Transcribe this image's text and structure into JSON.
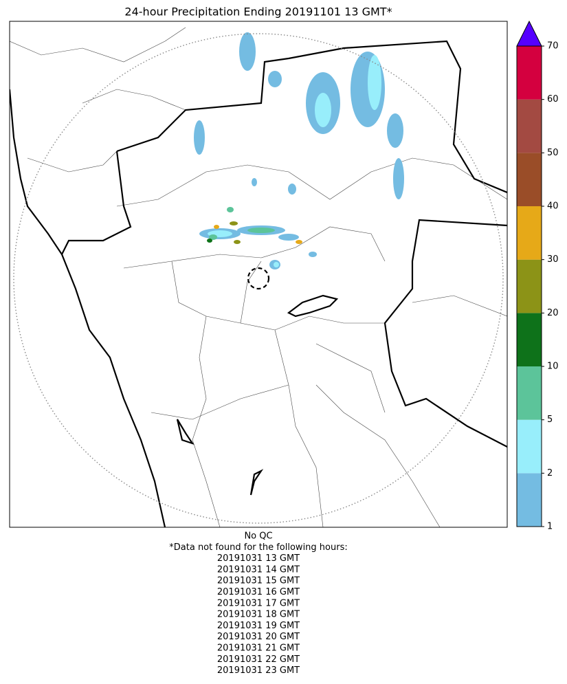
{
  "title": "24-hour Precipitation Ending 20191101 13 GMT*",
  "colorbar": {
    "boundaries": [
      1,
      2,
      5,
      10,
      20,
      30,
      40,
      50,
      60,
      70
    ],
    "colors": [
      "#74bce2",
      "#98eefb",
      "#5cc49a",
      "#0e721a",
      "#8c9317",
      "#e6a918",
      "#9a4d28",
      "#a34a42",
      "#d4003f"
    ],
    "extend_color": "#5500ff"
  },
  "notes": {
    "qc": "No QC",
    "missing_header": "*Data not found for the following hours:",
    "missing_hours": [
      "20191031 13 GMT",
      "20191031 14 GMT",
      "20191031 15 GMT",
      "20191031 16 GMT",
      "20191031 17 GMT",
      "20191031 18 GMT",
      "20191031 19 GMT",
      "20191031 20 GMT",
      "20191031 21 GMT",
      "20191031 22 GMT",
      "20191031 23 GMT"
    ]
  }
}
